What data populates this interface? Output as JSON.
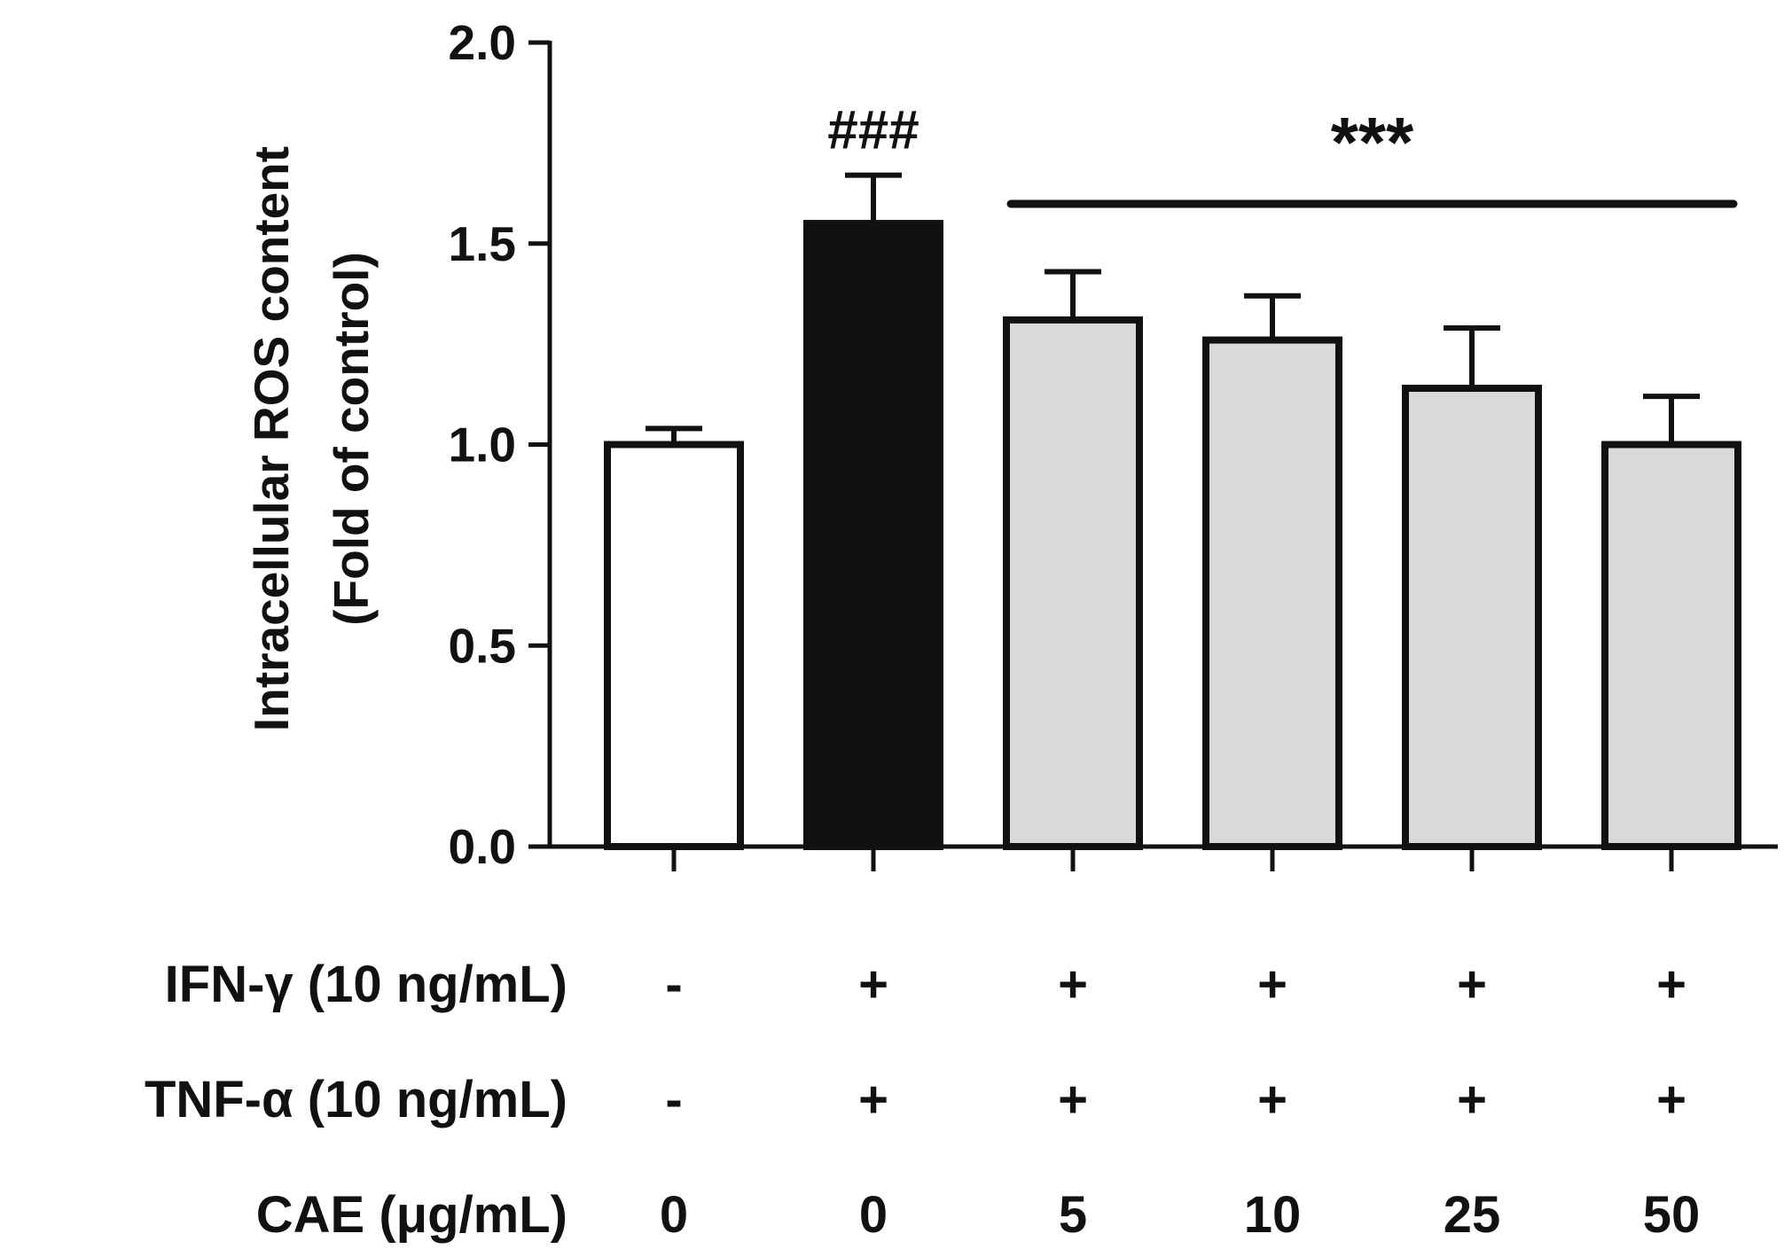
{
  "chart_data": {
    "type": "bar",
    "title": "",
    "ylabel_line1": "Intracellular ROS content",
    "ylabel_line2": "(Fold of control)",
    "xlabel": "",
    "ylim": [
      0,
      2.0
    ],
    "yticks": [
      "0.0",
      "0.5",
      "1.0",
      "1.5",
      "2.0"
    ],
    "grid": false,
    "categories": [
      "0",
      "0",
      "5",
      "10",
      "25",
      "50"
    ],
    "values": [
      1.0,
      1.55,
      1.31,
      1.26,
      1.14,
      1.0
    ],
    "errors": [
      0.04,
      0.12,
      0.12,
      0.11,
      0.15,
      0.12
    ],
    "bar_colors": [
      "#ffffff",
      "#111111",
      "#d9d9d9",
      "#d9d9d9",
      "#d9d9d9",
      "#d9d9d9"
    ],
    "treatment_rows": [
      {
        "label": "IFN-γ (10 ng/mL)",
        "values": [
          "-",
          "+",
          "+",
          "+",
          "+",
          "+"
        ]
      },
      {
        "label": "TNF-α (10 ng/mL)",
        "values": [
          "-",
          "+",
          "+",
          "+",
          "+",
          "+"
        ]
      },
      {
        "label": "CAE (μg/mL)",
        "values": [
          "0",
          "0",
          "5",
          "10",
          "25",
          "50"
        ]
      }
    ],
    "annotations": {
      "hash_mark": "###",
      "hash_index": 1,
      "star_mark": "***",
      "star_range": [
        2,
        5
      ]
    }
  }
}
